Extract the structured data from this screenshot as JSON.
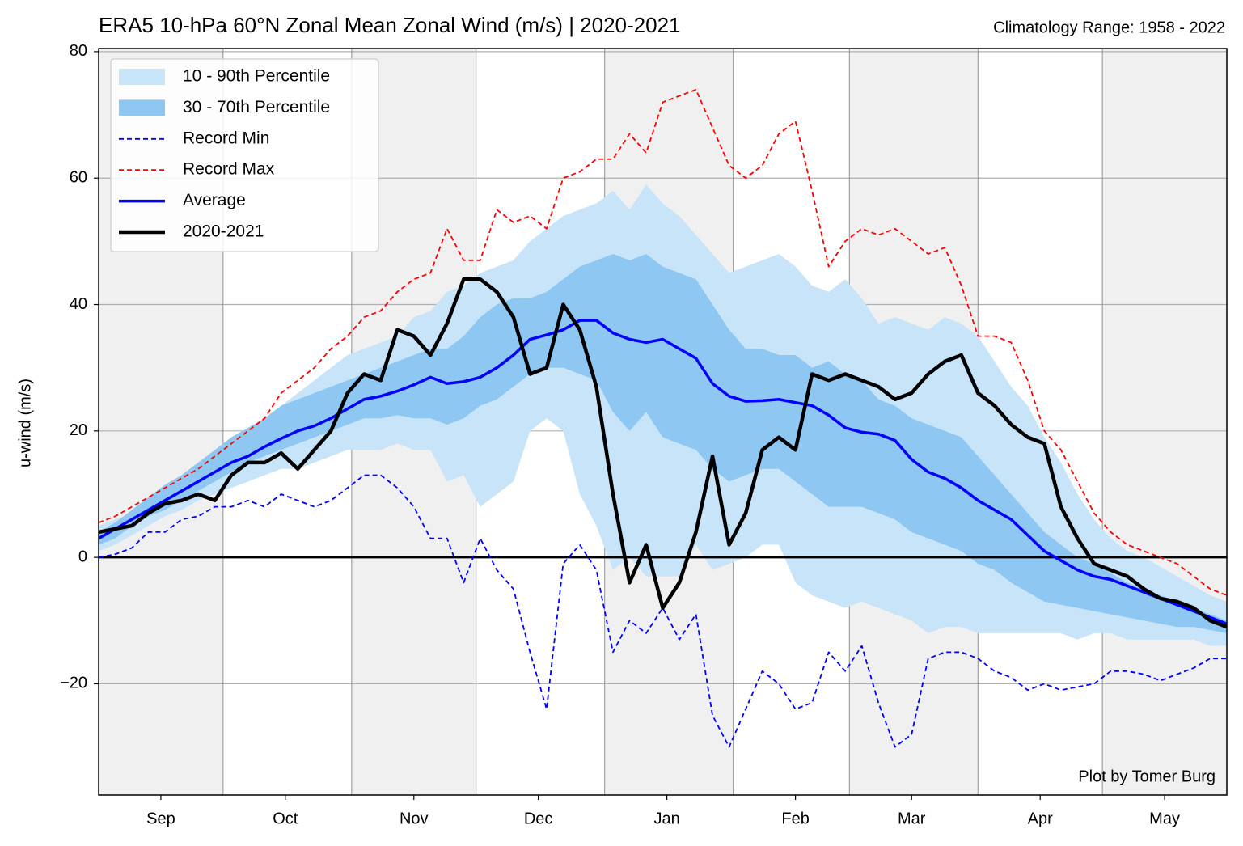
{
  "chart_data": {
    "type": "line",
    "title": "ERA5 10-hPa 60°N Zonal Mean Zonal Wind (m/s) | 2020-2021",
    "subtitle": "Climatology Range: 1958 - 2022",
    "ylabel": "u-wind (m/s)",
    "annotation": "Plot by Tomer Burg",
    "legend": "upper left",
    "grid": true,
    "alternate_shading": true,
    "shade_color": "#f0f0f0",
    "hline": 0,
    "xlim": [
      0,
      272
    ],
    "xticks": [
      {
        "value": 15,
        "label": "Sep"
      },
      {
        "value": 45,
        "label": "Oct"
      },
      {
        "value": 76,
        "label": "Nov"
      },
      {
        "value": 106,
        "label": "Dec"
      },
      {
        "value": 137,
        "label": "Jan"
      },
      {
        "value": 168,
        "label": "Feb"
      },
      {
        "value": 196,
        "label": "Mar"
      },
      {
        "value": 227,
        "label": "Apr"
      },
      {
        "value": 257,
        "label": "May"
      }
    ],
    "xgrid": [
      30,
      61,
      91,
      122,
      153,
      181,
      212,
      242
    ],
    "ylim": [
      -37.6,
      80.5
    ],
    "yticks": [
      {
        "value": -20,
        "label": "−20"
      },
      0,
      20,
      40,
      60,
      80
    ],
    "x": [
      0,
      4,
      8,
      12,
      16,
      20,
      24,
      28,
      32,
      36,
      40,
      44,
      48,
      52,
      56,
      60,
      64,
      68,
      72,
      76,
      80,
      84,
      88,
      92,
      96,
      100,
      104,
      108,
      112,
      116,
      120,
      124,
      128,
      132,
      136,
      140,
      144,
      148,
      152,
      156,
      160,
      164,
      168,
      172,
      176,
      180,
      184,
      188,
      192,
      196,
      200,
      204,
      208,
      212,
      216,
      220,
      224,
      228,
      232,
      236,
      240,
      244,
      248,
      252,
      256,
      260,
      264,
      268,
      272
    ],
    "series": [
      {
        "name": "10 - 90th Percentile",
        "color": "#c8e4f8",
        "upper": [
          5,
          6,
          7,
          9,
          11,
          12.5,
          14,
          16,
          18,
          20,
          22,
          24,
          26,
          28,
          30,
          32,
          33,
          34,
          35,
          38,
          39,
          42,
          43,
          45,
          46,
          47,
          50,
          52,
          54,
          55,
          56,
          58,
          55,
          59,
          56,
          54,
          51,
          48,
          45,
          46,
          47,
          48,
          46,
          43,
          42,
          44,
          41,
          37,
          38,
          37,
          36,
          38,
          37,
          35,
          31,
          27,
          24,
          19,
          15,
          10,
          6,
          3,
          1,
          0,
          -1.5,
          -3,
          -4.5,
          -6,
          -7
        ],
        "lower": [
          1,
          2,
          3.5,
          5,
          6.5,
          7.5,
          9,
          10,
          11,
          12,
          13,
          14,
          14,
          15,
          16,
          17,
          17,
          17,
          18,
          17,
          17,
          12,
          13,
          8,
          10,
          12,
          20,
          22,
          20,
          10,
          5,
          -2,
          0,
          -3,
          -3,
          -3,
          2,
          -2,
          -1,
          0,
          2,
          2,
          -4,
          -6,
          -7,
          -8,
          -7,
          -8,
          -9,
          -10,
          -12,
          -11,
          -11,
          -12,
          -12,
          -12,
          -12,
          -12,
          -12,
          -13,
          -12,
          -12,
          -13,
          -13,
          -13,
          -13,
          -13,
          -14,
          -14
        ]
      },
      {
        "name": "30 - 70th Percentile",
        "color": "#8ec8f2",
        "upper": [
          4,
          5.5,
          7.5,
          9.5,
          11.5,
          13,
          15,
          17,
          19,
          20.5,
          22,
          24,
          25,
          26,
          27,
          28,
          29,
          30,
          31,
          32,
          33,
          33,
          35,
          38,
          40,
          41,
          41,
          42,
          44,
          46,
          47,
          48,
          47,
          48,
          46,
          45,
          44,
          40,
          36,
          33,
          33,
          32,
          32,
          30,
          31,
          29,
          28,
          25,
          24,
          22,
          21,
          20,
          19,
          16,
          13,
          10,
          7,
          4,
          2,
          0,
          -1,
          -2.5,
          -4,
          -5,
          -6,
          -7,
          -8,
          -9,
          -10
        ],
        "lower": [
          2,
          3,
          5,
          6.5,
          7.5,
          9,
          10.5,
          12,
          13.5,
          15,
          16,
          17,
          18,
          19,
          20,
          21,
          22,
          22,
          22.5,
          22,
          22,
          21,
          22,
          24,
          25,
          27,
          29,
          30,
          30,
          29,
          28,
          23,
          20,
          23,
          19,
          18,
          17,
          14,
          12,
          13,
          14,
          14,
          12,
          10,
          8,
          8,
          8,
          7,
          6,
          4,
          3,
          2,
          1,
          -1,
          -2,
          -4,
          -5.5,
          -7,
          -7.5,
          -8,
          -8.5,
          -9,
          -9.5,
          -10,
          -10.5,
          -11,
          -11,
          -11.5,
          -12
        ]
      },
      {
        "name": "Record Min",
        "color": "#0000ff",
        "dashed": true,
        "width": 1.8,
        "values": [
          0,
          0.5,
          1.5,
          4,
          4,
          6,
          6.5,
          8,
          8,
          9,
          8,
          10,
          9,
          8,
          9,
          11,
          13,
          13,
          11,
          8,
          3,
          3,
          -4,
          3,
          -2,
          -5,
          -15,
          -24,
          -1,
          2,
          -2,
          -15,
          -10,
          -12,
          -8,
          -13,
          -9,
          -25,
          -30,
          -24,
          -18,
          -20,
          -24,
          -23,
          -15,
          -18,
          -14,
          -23,
          -30,
          -28,
          -16,
          -15,
          -15,
          -16,
          -18,
          -19,
          -21,
          -20,
          -21,
          -20.5,
          -20,
          -18,
          -18,
          -18.5,
          -19.5,
          -18.5,
          -17.5,
          -16,
          -16
        ]
      },
      {
        "name": "Record Max",
        "color": "#ff0000",
        "dashed": true,
        "width": 1.8,
        "values": [
          5.5,
          6.5,
          8,
          9.5,
          11,
          12.5,
          14,
          16,
          18,
          20,
          22,
          26,
          28,
          30,
          33,
          35,
          38,
          39,
          42,
          44,
          45,
          52,
          47,
          47,
          55,
          53,
          54,
          52,
          60,
          61,
          63,
          63,
          67,
          64,
          72,
          73,
          74,
          68,
          62,
          60,
          62,
          67,
          69,
          58,
          46,
          50,
          52,
          51,
          52,
          50,
          48,
          49,
          43,
          35,
          35,
          34,
          28,
          20,
          17,
          12,
          7,
          4,
          2,
          1,
          0,
          -1,
          -3,
          -5,
          -6
        ]
      },
      {
        "name": "Average",
        "color": "#0000ff",
        "width": 3.5,
        "values": [
          3,
          4.5,
          6,
          7.5,
          9,
          10.5,
          12,
          13.5,
          15,
          16,
          17.5,
          18.8,
          20,
          20.8,
          22,
          23.5,
          25,
          25.5,
          26.3,
          27.3,
          28.5,
          27.5,
          27.8,
          28.5,
          30,
          32,
          34.5,
          35.2,
          36,
          37.5,
          37.5,
          35.5,
          34.5,
          34,
          34.5,
          33,
          31.5,
          27.5,
          25.5,
          24.7,
          24.8,
          25,
          24.5,
          24,
          22.5,
          20.5,
          19.8,
          19.5,
          18.5,
          15.5,
          13.5,
          12.5,
          11,
          9,
          7.5,
          6,
          3.5,
          1,
          -0.5,
          -2,
          -3,
          -3.5,
          -4.5,
          -5.5,
          -6.5,
          -7.5,
          -8.5,
          -9.5,
          -10.5
        ]
      },
      {
        "name": "2020-2021",
        "color": "#000000",
        "width": 4.5,
        "values": [
          4,
          4.5,
          5,
          7,
          8.5,
          9,
          10,
          9,
          13,
          15,
          15,
          16.5,
          14,
          17,
          20,
          26,
          29,
          28,
          36,
          35,
          32,
          37,
          44,
          44,
          42,
          38,
          29,
          30,
          40,
          36,
          27,
          10,
          -4,
          2,
          -8,
          -4,
          4,
          16,
          2,
          7,
          17,
          19,
          17,
          29,
          28,
          29,
          28,
          27,
          25,
          26,
          29,
          31,
          32,
          26,
          24,
          21,
          19,
          18,
          8,
          3,
          -1,
          -2,
          -3,
          -5,
          -6.5,
          -7,
          -8,
          -10,
          -11
        ]
      }
    ]
  }
}
